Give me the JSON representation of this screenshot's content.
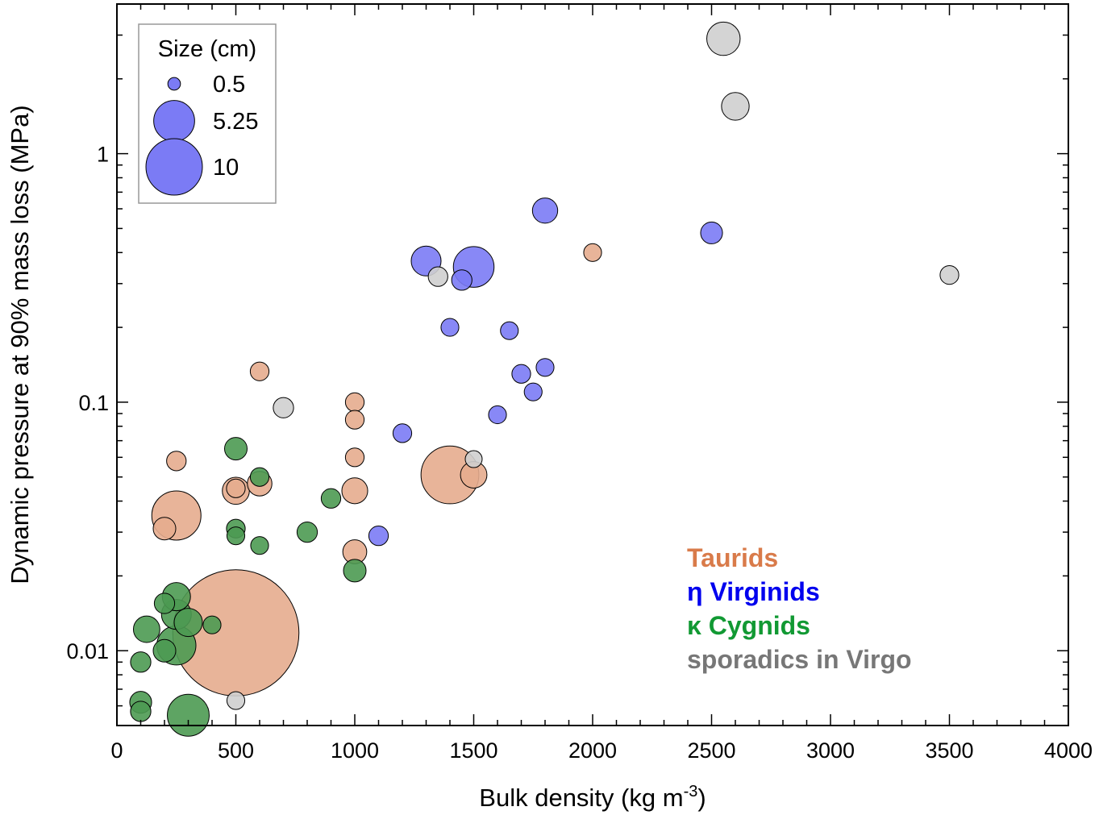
{
  "chart_data": {
    "type": "scatter",
    "subtype": "bubble",
    "xlabel": "Bulk density (kg m",
    "xlabel_sup": "-3",
    "xlabel_suffix": ")",
    "ylabel": "Dynamic pressure at 90% mass loss (MPa)",
    "x_scale": "linear",
    "y_scale": "log",
    "xlim": [
      0,
      4000
    ],
    "ylim": [
      0.005,
      4
    ],
    "x_ticks": [
      0,
      500,
      1000,
      1500,
      2000,
      2500,
      3000,
      3500,
      4000
    ],
    "x_tick_labels": [
      "0",
      "500",
      "1000",
      "1500",
      "2000",
      "2500",
      "3000",
      "3500",
      "4000"
    ],
    "y_ticks": [
      0.01,
      0.1,
      1
    ],
    "y_tick_labels": [
      "0.01",
      "0.1",
      "1"
    ],
    "grid": false,
    "size_legend": {
      "title": "Size (cm)",
      "placement": "top-left",
      "color": "#7b7bf5",
      "entries": [
        {
          "label": "0.5",
          "size_cm": 0.5
        },
        {
          "label": "5.25",
          "size_cm": 5.25
        },
        {
          "label": "10",
          "size_cm": 10
        }
      ]
    },
    "series_legend_placement": "bottom-right",
    "series": [
      {
        "name": "Taurids",
        "color": "#d97b4a",
        "fill": "#e6ac8e",
        "points": [
          {
            "x": 500,
            "y": 0.0118,
            "size_cm": 50
          },
          {
            "x": 1400,
            "y": 0.051,
            "size_cm": 10.5
          },
          {
            "x": 250,
            "y": 0.035,
            "size_cm": 7.6
          },
          {
            "x": 500,
            "y": 0.044,
            "size_cm": 2.3
          },
          {
            "x": 1500,
            "y": 0.051,
            "size_cm": 2.2
          },
          {
            "x": 600,
            "y": 0.047,
            "size_cm": 1.9
          },
          {
            "x": 1000,
            "y": 0.044,
            "size_cm": 2.1
          },
          {
            "x": 200,
            "y": 0.031,
            "size_cm": 1.6
          },
          {
            "x": 1000,
            "y": 0.025,
            "size_cm": 1.8
          },
          {
            "x": 250,
            "y": 0.058,
            "size_cm": 1.2
          },
          {
            "x": 600,
            "y": 0.133,
            "size_cm": 1.1
          },
          {
            "x": 1000,
            "y": 0.1,
            "size_cm": 1.1
          },
          {
            "x": 1000,
            "y": 0.085,
            "size_cm": 1.1
          },
          {
            "x": 1000,
            "y": 0.06,
            "size_cm": 1.1
          },
          {
            "x": 500,
            "y": 0.045,
            "size_cm": 1.1
          },
          {
            "x": 2000,
            "y": 0.4,
            "size_cm": 1.0
          }
        ]
      },
      {
        "name": "η Virginids",
        "color": "#0000ee",
        "fill": "#7b7bf5",
        "points": [
          {
            "x": 1500,
            "y": 0.35,
            "size_cm": 5.2
          },
          {
            "x": 1300,
            "y": 0.37,
            "size_cm": 2.8
          },
          {
            "x": 1800,
            "y": 0.59,
            "size_cm": 2.0
          },
          {
            "x": 2500,
            "y": 0.48,
            "size_cm": 1.5
          },
          {
            "x": 1450,
            "y": 0.31,
            "size_cm": 1.3
          },
          {
            "x": 1400,
            "y": 0.2,
            "size_cm": 1.0
          },
          {
            "x": 1650,
            "y": 0.194,
            "size_cm": 1.0
          },
          {
            "x": 1700,
            "y": 0.13,
            "size_cm": 1.1
          },
          {
            "x": 1800,
            "y": 0.138,
            "size_cm": 1.0
          },
          {
            "x": 1750,
            "y": 0.11,
            "size_cm": 1.0
          },
          {
            "x": 1600,
            "y": 0.089,
            "size_cm": 1.0
          },
          {
            "x": 1200,
            "y": 0.075,
            "size_cm": 1.1
          },
          {
            "x": 1100,
            "y": 0.029,
            "size_cm": 1.2
          }
        ]
      },
      {
        "name": "κ Cygnids",
        "color": "#119933",
        "fill": "#4d9a52",
        "points": [
          {
            "x": 300,
            "y": 0.0055,
            "size_cm": 5.5
          },
          {
            "x": 250,
            "y": 0.0105,
            "size_cm": 4.8
          },
          {
            "x": 250,
            "y": 0.014,
            "size_cm": 2.8
          },
          {
            "x": 250,
            "y": 0.0165,
            "size_cm": 2.5
          },
          {
            "x": 300,
            "y": 0.013,
            "size_cm": 2.5
          },
          {
            "x": 125,
            "y": 0.0122,
            "size_cm": 2.2
          },
          {
            "x": 200,
            "y": 0.01,
            "size_cm": 1.6
          },
          {
            "x": 200,
            "y": 0.0155,
            "size_cm": 1.3
          },
          {
            "x": 100,
            "y": 0.0062,
            "size_cm": 1.5
          },
          {
            "x": 100,
            "y": 0.0057,
            "size_cm": 1.3
          },
          {
            "x": 100,
            "y": 0.009,
            "size_cm": 1.3
          },
          {
            "x": 400,
            "y": 0.0127,
            "size_cm": 1.0
          },
          {
            "x": 500,
            "y": 0.065,
            "size_cm": 1.6
          },
          {
            "x": 1000,
            "y": 0.021,
            "size_cm": 1.6
          },
          {
            "x": 800,
            "y": 0.03,
            "size_cm": 1.3
          },
          {
            "x": 900,
            "y": 0.041,
            "size_cm": 1.2
          },
          {
            "x": 600,
            "y": 0.05,
            "size_cm": 1.1
          },
          {
            "x": 500,
            "y": 0.031,
            "size_cm": 1.1
          },
          {
            "x": 500,
            "y": 0.029,
            "size_cm": 1.0
          },
          {
            "x": 600,
            "y": 0.0265,
            "size_cm": 1.0
          }
        ]
      },
      {
        "name": "sporadics in Virgo",
        "color": "#777777",
        "fill": "#cfcfcf",
        "points": [
          {
            "x": 2550,
            "y": 2.9,
            "size_cm": 3.5
          },
          {
            "x": 2600,
            "y": 1.55,
            "size_cm": 2.4
          },
          {
            "x": 3500,
            "y": 0.325,
            "size_cm": 1.1
          },
          {
            "x": 1350,
            "y": 0.32,
            "size_cm": 1.2
          },
          {
            "x": 700,
            "y": 0.095,
            "size_cm": 1.3
          },
          {
            "x": 1500,
            "y": 0.059,
            "size_cm": 0.9
          },
          {
            "x": 500,
            "y": 0.0063,
            "size_cm": 1.0
          }
        ]
      }
    ]
  }
}
